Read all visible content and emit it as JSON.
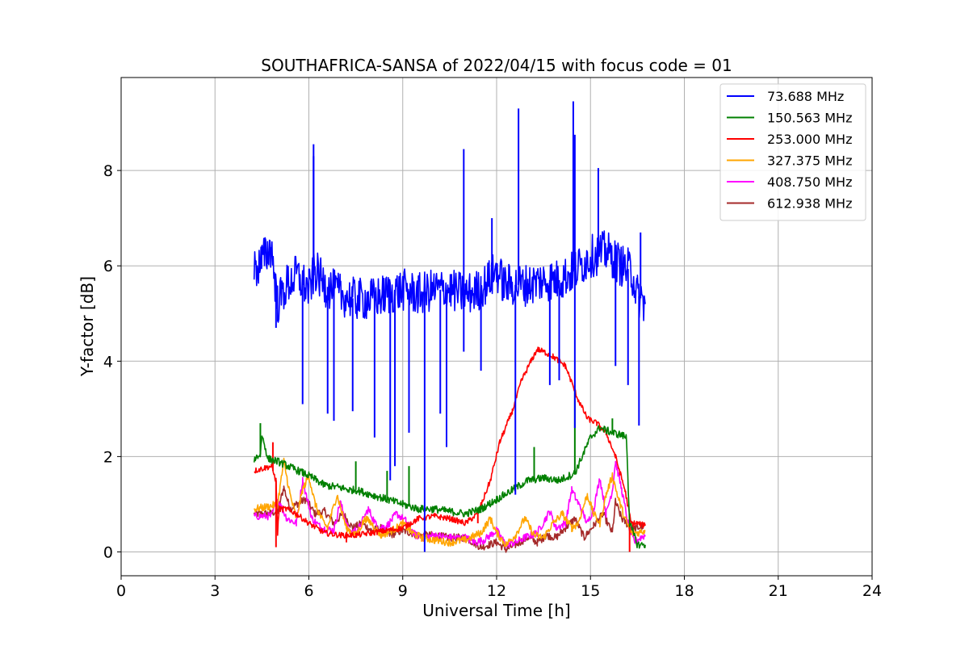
{
  "chart_data": {
    "type": "line",
    "title": "SOUTHAFRICA-SANSA of 2022/04/15 with focus code = 01",
    "xlabel": "Universal Time [h]",
    "ylabel": "Y-factor [dB]",
    "xlim": [
      0,
      24
    ],
    "ylim": [
      -0.5,
      9.95
    ],
    "xticks": [
      0,
      3,
      6,
      9,
      12,
      15,
      18,
      21,
      24
    ],
    "yticks": [
      0,
      2,
      4,
      6,
      8
    ],
    "grid": true,
    "legend_position": "top-right",
    "series": [
      {
        "name": " 73.688 MHz",
        "color": "#0000ff",
        "points": [
          [
            4.25,
            5.9
          ],
          [
            4.5,
            6.1
          ],
          [
            4.8,
            6.4
          ],
          [
            5.0,
            5.2
          ],
          [
            5.3,
            5.6
          ],
          [
            5.6,
            5.8
          ],
          [
            6.0,
            5.5
          ],
          [
            6.2,
            5.9
          ],
          [
            6.5,
            5.6
          ],
          [
            7.0,
            5.4
          ],
          [
            7.5,
            5.3
          ],
          [
            8.0,
            5.3
          ],
          [
            8.5,
            5.4
          ],
          [
            9.0,
            5.5
          ],
          [
            9.5,
            5.4
          ],
          [
            10.0,
            5.5
          ],
          [
            10.5,
            5.5
          ],
          [
            11.0,
            5.4
          ],
          [
            11.5,
            5.5
          ],
          [
            12.0,
            5.9
          ],
          [
            12.25,
            5.6
          ],
          [
            12.5,
            5.6
          ],
          [
            13.0,
            5.6
          ],
          [
            13.5,
            5.7
          ],
          [
            14.0,
            5.7
          ],
          [
            14.5,
            5.9
          ],
          [
            15.0,
            6.2
          ],
          [
            15.5,
            6.3
          ],
          [
            16.0,
            6.0
          ],
          [
            16.3,
            5.9
          ],
          [
            16.5,
            5.4
          ],
          [
            16.75,
            5.2
          ]
        ],
        "spikes": [
          [
            6.15,
            8.55
          ],
          [
            6.15,
            8.3
          ],
          [
            5.8,
            3.1
          ],
          [
            6.6,
            2.9
          ],
          [
            6.8,
            2.75
          ],
          [
            7.4,
            2.95
          ],
          [
            8.1,
            2.4
          ],
          [
            8.6,
            1.5
          ],
          [
            8.75,
            1.8
          ],
          [
            9.2,
            2.5
          ],
          [
            9.7,
            0.0
          ],
          [
            10.2,
            2.9
          ],
          [
            10.4,
            2.2
          ],
          [
            10.95,
            8.45
          ],
          [
            11.5,
            3.8
          ],
          [
            12.6,
            1.2
          ],
          [
            12.7,
            9.3
          ],
          [
            13.7,
            3.5
          ],
          [
            14.0,
            3.6
          ],
          [
            14.45,
            9.45
          ],
          [
            14.5,
            2.6
          ],
          [
            14.5,
            8.75
          ],
          [
            15.25,
            8.05
          ],
          [
            15.8,
            3.9
          ],
          [
            16.2,
            3.5
          ],
          [
            16.55,
            2.65
          ],
          [
            16.6,
            6.7
          ],
          [
            11.85,
            7.0
          ],
          [
            10.95,
            4.2
          ],
          [
            4.95,
            4.7
          ]
        ]
      },
      {
        "name": "150.563 MHz",
        "color": "#008000",
        "points": [
          [
            4.25,
            1.95
          ],
          [
            4.45,
            2.05
          ],
          [
            4.5,
            2.45
          ],
          [
            4.7,
            1.95
          ],
          [
            5.0,
            1.9
          ],
          [
            5.5,
            1.75
          ],
          [
            6.0,
            1.6
          ],
          [
            6.5,
            1.4
          ],
          [
            7.0,
            1.35
          ],
          [
            7.3,
            1.3
          ],
          [
            7.5,
            1.3
          ],
          [
            8.0,
            1.2
          ],
          [
            8.5,
            1.1
          ],
          [
            9.0,
            1.0
          ],
          [
            9.5,
            0.9
          ],
          [
            10.0,
            0.9
          ],
          [
            10.5,
            0.85
          ],
          [
            11.0,
            0.8
          ],
          [
            11.5,
            0.9
          ],
          [
            12.0,
            1.1
          ],
          [
            12.5,
            1.3
          ],
          [
            13.0,
            1.5
          ],
          [
            13.5,
            1.55
          ],
          [
            14.0,
            1.5
          ],
          [
            14.5,
            1.65
          ],
          [
            15.0,
            2.4
          ],
          [
            15.3,
            2.6
          ],
          [
            15.7,
            2.5
          ],
          [
            16.0,
            2.45
          ],
          [
            16.15,
            2.4
          ],
          [
            16.25,
            0.6
          ],
          [
            16.5,
            0.15
          ],
          [
            16.75,
            0.15
          ]
        ],
        "spikes": [
          [
            4.45,
            2.7
          ],
          [
            7.5,
            1.9
          ],
          [
            8.5,
            1.7
          ],
          [
            9.2,
            1.8
          ],
          [
            13.2,
            2.2
          ],
          [
            14.5,
            3.4
          ],
          [
            15.7,
            2.8
          ]
        ]
      },
      {
        "name": "253.000 MHz",
        "color": "#ff0000",
        "points": [
          [
            4.25,
            1.7
          ],
          [
            4.8,
            1.8
          ],
          [
            4.95,
            1.5
          ],
          [
            5.0,
            0.4
          ],
          [
            5.05,
            0.9
          ],
          [
            5.3,
            0.9
          ],
          [
            5.6,
            0.8
          ],
          [
            6.0,
            0.6
          ],
          [
            6.5,
            0.4
          ],
          [
            7.0,
            0.35
          ],
          [
            7.5,
            0.35
          ],
          [
            8.0,
            0.4
          ],
          [
            8.5,
            0.45
          ],
          [
            9.0,
            0.5
          ],
          [
            9.5,
            0.7
          ],
          [
            10.0,
            0.75
          ],
          [
            10.5,
            0.7
          ],
          [
            11.0,
            0.6
          ],
          [
            11.4,
            0.8
          ],
          [
            11.8,
            1.5
          ],
          [
            12.1,
            2.3
          ],
          [
            12.5,
            2.95
          ],
          [
            12.8,
            3.6
          ],
          [
            13.1,
            4.0
          ],
          [
            13.3,
            4.25
          ],
          [
            13.5,
            4.2
          ],
          [
            13.8,
            4.1
          ],
          [
            14.2,
            3.9
          ],
          [
            14.6,
            3.2
          ],
          [
            14.9,
            2.8
          ],
          [
            15.2,
            2.7
          ],
          [
            15.5,
            2.5
          ],
          [
            15.8,
            2.0
          ],
          [
            16.1,
            1.3
          ],
          [
            16.3,
            0.6
          ],
          [
            16.5,
            0.6
          ],
          [
            16.75,
            0.55
          ]
        ],
        "spikes": [
          [
            4.85,
            2.3
          ],
          [
            4.95,
            0.1
          ],
          [
            7.2,
            0.2
          ],
          [
            11.4,
            0.6
          ],
          [
            16.25,
            0.0
          ]
        ]
      },
      {
        "name": "327.375 MHz",
        "color": "#ffa500",
        "points": [
          [
            4.25,
            0.9
          ],
          [
            4.7,
            0.95
          ],
          [
            5.0,
            1.0
          ],
          [
            5.2,
            1.9
          ],
          [
            5.4,
            1.2
          ],
          [
            5.6,
            0.7
          ],
          [
            5.8,
            1.3
          ],
          [
            6.0,
            1.6
          ],
          [
            6.2,
            1.0
          ],
          [
            6.4,
            0.7
          ],
          [
            6.6,
            0.5
          ],
          [
            6.9,
            1.2
          ],
          [
            7.2,
            0.5
          ],
          [
            7.5,
            0.35
          ],
          [
            7.8,
            0.7
          ],
          [
            8.0,
            0.6
          ],
          [
            8.3,
            0.35
          ],
          [
            8.5,
            0.4
          ],
          [
            8.8,
            0.5
          ],
          [
            9.0,
            0.6
          ],
          [
            9.3,
            0.4
          ],
          [
            9.6,
            0.3
          ],
          [
            10.0,
            0.25
          ],
          [
            10.5,
            0.2
          ],
          [
            11.0,
            0.25
          ],
          [
            11.5,
            0.4
          ],
          [
            11.8,
            0.7
          ],
          [
            12.0,
            0.4
          ],
          [
            12.3,
            0.15
          ],
          [
            12.6,
            0.35
          ],
          [
            12.9,
            0.7
          ],
          [
            13.2,
            0.35
          ],
          [
            13.5,
            0.3
          ],
          [
            13.8,
            0.6
          ],
          [
            14.1,
            0.8
          ],
          [
            14.4,
            0.5
          ],
          [
            14.6,
            0.6
          ],
          [
            14.9,
            1.2
          ],
          [
            15.1,
            0.8
          ],
          [
            15.3,
            0.6
          ],
          [
            15.5,
            1.2
          ],
          [
            15.7,
            1.6
          ],
          [
            15.9,
            1.1
          ],
          [
            16.1,
            0.7
          ],
          [
            16.3,
            0.4
          ],
          [
            16.5,
            0.4
          ],
          [
            16.75,
            0.45
          ]
        ],
        "spikes": []
      },
      {
        "name": "408.750 MHz",
        "color": "#ff00ff",
        "points": [
          [
            4.25,
            0.75
          ],
          [
            4.8,
            0.75
          ],
          [
            5.0,
            1.1
          ],
          [
            5.3,
            0.7
          ],
          [
            5.6,
            0.6
          ],
          [
            5.8,
            1.5
          ],
          [
            6.1,
            0.7
          ],
          [
            6.4,
            0.5
          ],
          [
            6.8,
            0.45
          ],
          [
            7.0,
            1.05
          ],
          [
            7.3,
            0.4
          ],
          [
            7.6,
            0.5
          ],
          [
            7.9,
            0.9
          ],
          [
            8.2,
            0.5
          ],
          [
            8.5,
            0.55
          ],
          [
            8.8,
            0.8
          ],
          [
            9.1,
            0.65
          ],
          [
            9.4,
            0.35
          ],
          [
            9.7,
            0.3
          ],
          [
            10.0,
            0.35
          ],
          [
            10.5,
            0.3
          ],
          [
            11.0,
            0.3
          ],
          [
            11.3,
            0.2
          ],
          [
            11.6,
            0.25
          ],
          [
            12.0,
            0.45
          ],
          [
            12.3,
            0.15
          ],
          [
            12.6,
            0.2
          ],
          [
            12.9,
            0.3
          ],
          [
            13.3,
            0.4
          ],
          [
            13.7,
            0.85
          ],
          [
            13.9,
            0.5
          ],
          [
            14.2,
            0.6
          ],
          [
            14.4,
            1.3
          ],
          [
            14.7,
            0.9
          ],
          [
            14.9,
            0.6
          ],
          [
            15.1,
            0.9
          ],
          [
            15.3,
            1.55
          ],
          [
            15.5,
            0.8
          ],
          [
            15.7,
            1.3
          ],
          [
            15.8,
            1.9
          ],
          [
            16.0,
            1.3
          ],
          [
            16.2,
            0.6
          ],
          [
            16.4,
            0.2
          ],
          [
            16.6,
            0.3
          ],
          [
            16.75,
            0.35
          ]
        ],
        "spikes": []
      },
      {
        "name": "612.938 MHz",
        "color": "#a52a2a",
        "points": [
          [
            4.25,
            0.8
          ],
          [
            4.7,
            0.8
          ],
          [
            5.0,
            0.85
          ],
          [
            5.2,
            1.35
          ],
          [
            5.4,
            0.9
          ],
          [
            5.6,
            1.0
          ],
          [
            5.9,
            1.1
          ],
          [
            6.2,
            0.8
          ],
          [
            6.5,
            0.85
          ],
          [
            6.8,
            0.6
          ],
          [
            7.1,
            0.8
          ],
          [
            7.4,
            0.5
          ],
          [
            7.7,
            0.6
          ],
          [
            8.0,
            0.45
          ],
          [
            8.3,
            0.5
          ],
          [
            8.6,
            0.35
          ],
          [
            9.0,
            0.45
          ],
          [
            9.5,
            0.35
          ],
          [
            10.0,
            0.35
          ],
          [
            10.5,
            0.3
          ],
          [
            11.0,
            0.3
          ],
          [
            11.5,
            0.1
          ],
          [
            12.0,
            0.2
          ],
          [
            12.3,
            0.05
          ],
          [
            12.6,
            0.15
          ],
          [
            13.0,
            0.3
          ],
          [
            13.3,
            0.2
          ],
          [
            13.6,
            0.35
          ],
          [
            13.9,
            0.3
          ],
          [
            14.2,
            0.5
          ],
          [
            14.5,
            0.7
          ],
          [
            14.8,
            0.3
          ],
          [
            15.1,
            0.55
          ],
          [
            15.4,
            0.8
          ],
          [
            15.7,
            0.4
          ],
          [
            15.8,
            1.05
          ],
          [
            16.0,
            0.7
          ],
          [
            16.3,
            0.5
          ],
          [
            16.5,
            0.5
          ],
          [
            16.75,
            0.55
          ]
        ],
        "spikes": []
      }
    ]
  }
}
